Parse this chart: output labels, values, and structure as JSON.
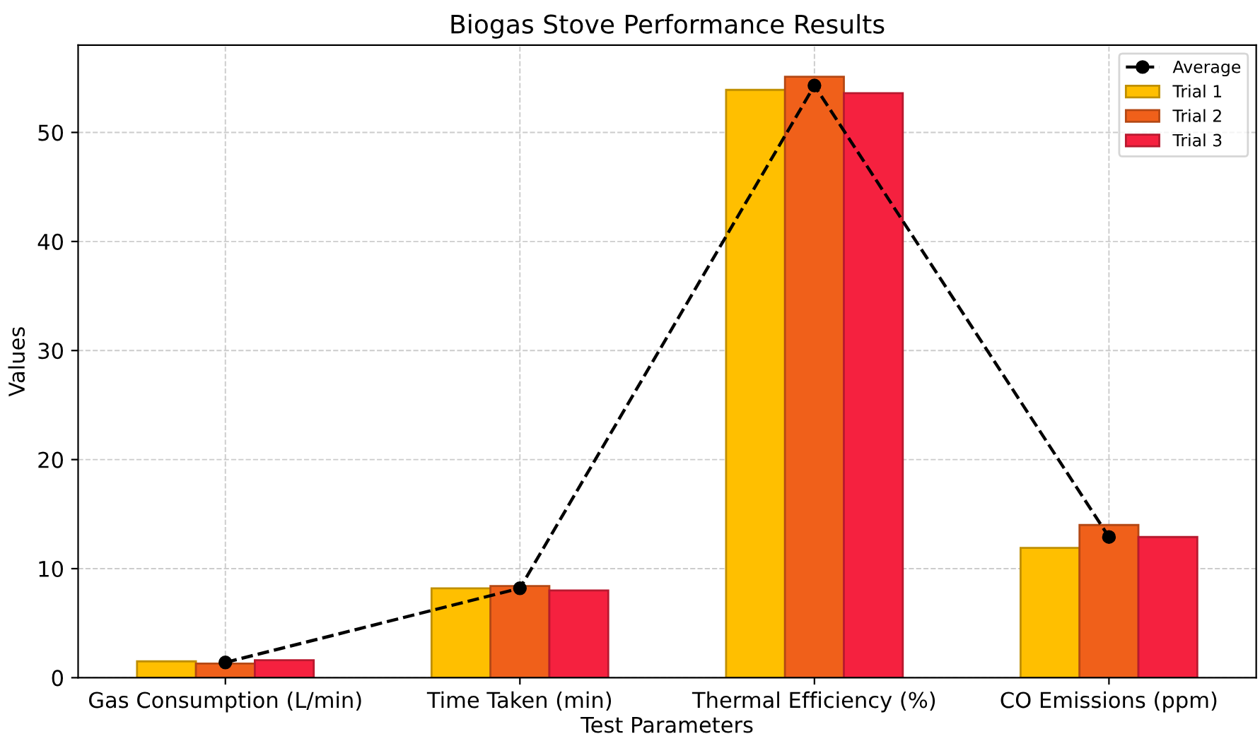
{
  "chart_data": {
    "type": "bar",
    "title": "Biogas Stove Performance Results",
    "xlabel": "Test Parameters",
    "ylabel": "Values",
    "categories": [
      "Gas Consumption (L/min)",
      "Time Taken (min)",
      "Thermal Efficiency (%)",
      "CO Emissions (ppm)"
    ],
    "series": [
      {
        "name": "Average",
        "type": "line",
        "color": "#000000",
        "marker": "circle",
        "line_style": "dashed",
        "values": [
          1.4,
          8.2,
          54.3,
          12.9
        ]
      },
      {
        "name": "Trial 1",
        "color": "#ffbf00",
        "values": [
          1.5,
          8.2,
          53.9,
          11.9
        ]
      },
      {
        "name": "Trial 2",
        "color": "#f0601a",
        "values": [
          1.3,
          8.4,
          55.1,
          14.0
        ]
      },
      {
        "name": "Trial 3",
        "color": "#f5213f",
        "values": [
          1.6,
          8.0,
          53.6,
          12.9
        ]
      }
    ],
    "ylim": [
      0,
      58
    ],
    "yticks": [
      0,
      10,
      20,
      30,
      40,
      50
    ],
    "grid": true,
    "legend": "top right"
  }
}
